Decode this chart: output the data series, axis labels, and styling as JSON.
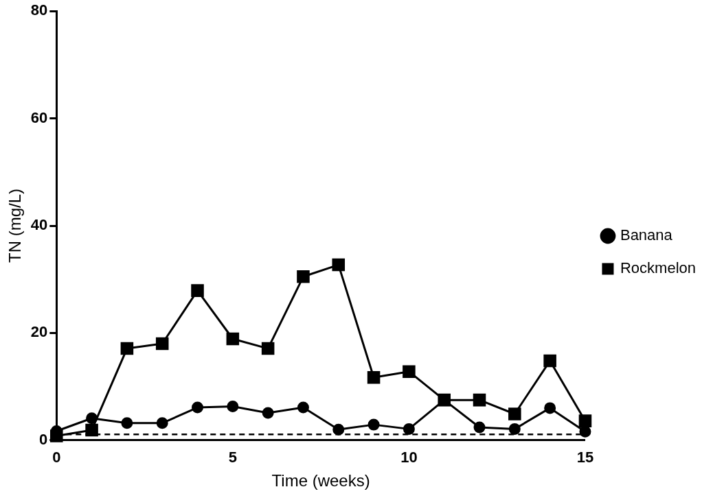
{
  "chart_data": {
    "type": "line",
    "xlabel": "Time (weeks)",
    "ylabel": "TN (mg/L)",
    "x": [
      0,
      1,
      2,
      3,
      4,
      5,
      6,
      7,
      8,
      9,
      10,
      11,
      12,
      13,
      14,
      15
    ],
    "series": [
      {
        "name": "Banana",
        "color": "#000000",
        "marker": "circle",
        "values": [
          1.7,
          4.1,
          3.2,
          3.2,
          6.1,
          6.3,
          5.1,
          6.1,
          2.0,
          2.9,
          2.1,
          7.5,
          2.4,
          2.1,
          6.0,
          1.6
        ]
      },
      {
        "name": "Rockmelon",
        "color": "#000000",
        "marker": "square",
        "values": [
          0.8,
          1.9,
          17.1,
          18.0,
          27.9,
          18.9,
          17.1,
          30.5,
          32.7,
          11.7,
          12.8,
          7.5,
          7.5,
          4.9,
          14.8,
          3.6
        ]
      }
    ],
    "ref_lines": [
      {
        "axis": "y",
        "value": 1.1,
        "color": "#000000",
        "line_style": "dashed"
      }
    ],
    "xlim": [
      0,
      15
    ],
    "xticks": [
      0,
      5,
      10,
      15
    ],
    "ylim": [
      0,
      80
    ],
    "yticks": [
      0,
      20,
      40,
      60,
      80
    ],
    "grid": false,
    "legend": "right",
    "line_style": "solid"
  }
}
